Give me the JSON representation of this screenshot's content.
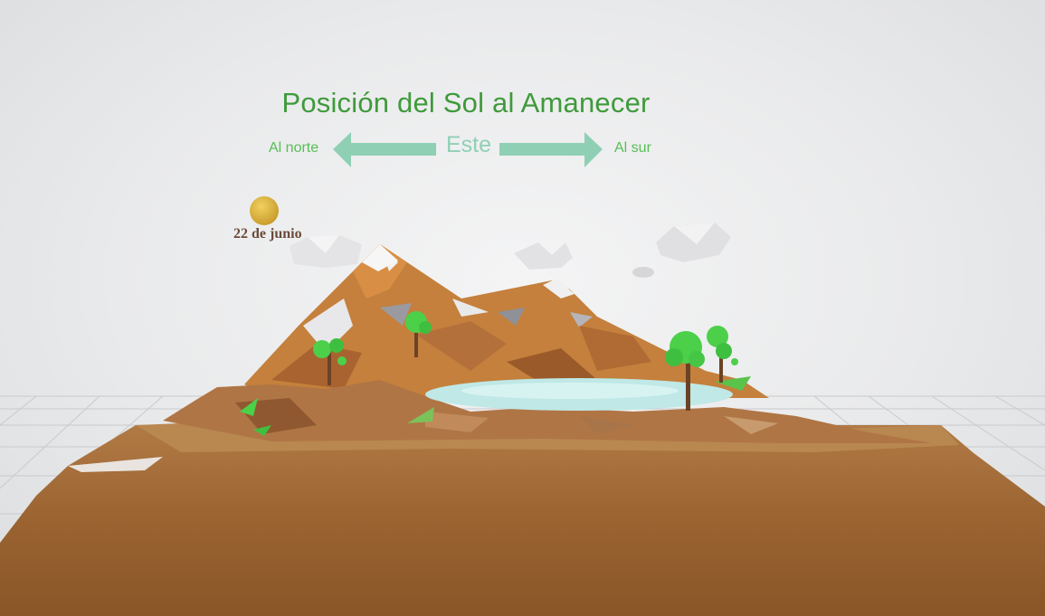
{
  "title": "Posición del Sol al Amanecer",
  "directions": {
    "north": "Al norte",
    "east": "Este",
    "south": "Al sur"
  },
  "sun": {
    "date_label": "22 de junio",
    "color": "#d9b13b"
  },
  "colors": {
    "title": "#3f9a3c",
    "arrow": "#8fd0b5",
    "terrain": "#a56a35",
    "foliage": "#4cd04a",
    "water": "#bfe8e6"
  }
}
